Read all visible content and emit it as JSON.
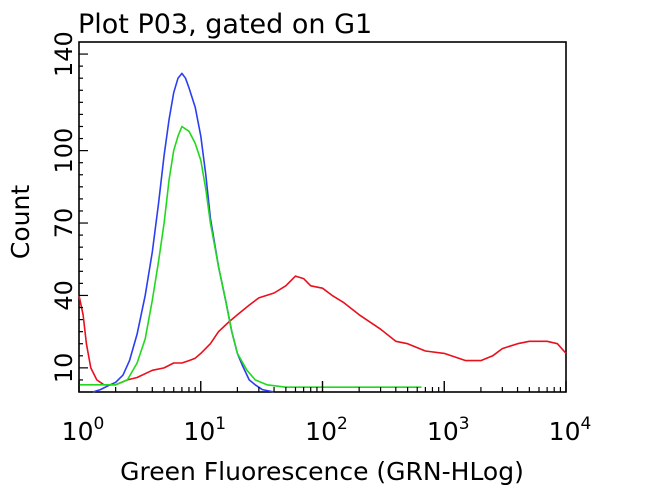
{
  "chart_data": {
    "type": "line",
    "title": "Plot P03, gated on G1",
    "xlabel": "Green Fluorescence (GRN-HLog)",
    "ylabel": "Count",
    "x_scale": "log",
    "xlim": [
      1,
      10000
    ],
    "ylim": [
      0,
      145
    ],
    "x_ticks": [
      {
        "value": 1,
        "base": "10",
        "exp": "0"
      },
      {
        "value": 10,
        "base": "10",
        "exp": "1"
      },
      {
        "value": 100,
        "base": "10",
        "exp": "2"
      },
      {
        "value": 1000,
        "base": "10",
        "exp": "3"
      },
      {
        "value": 10000,
        "base": "10",
        "exp": "4"
      }
    ],
    "y_ticks": [
      {
        "value": 10,
        "label": "10"
      },
      {
        "value": 40,
        "label": "40"
      },
      {
        "value": 70,
        "label": "70"
      },
      {
        "value": 100,
        "label": "100"
      },
      {
        "value": 140,
        "label": "140"
      }
    ],
    "grid": false,
    "legend": "none",
    "series": [
      {
        "color": "#e8101c",
        "points": [
          [
            1.0,
            40
          ],
          [
            1.08,
            32
          ],
          [
            1.15,
            20
          ],
          [
            1.25,
            10
          ],
          [
            1.4,
            5
          ],
          [
            1.6,
            3
          ],
          [
            2.0,
            3
          ],
          [
            2.5,
            5
          ],
          [
            3.0,
            6
          ],
          [
            4.0,
            9
          ],
          [
            5.0,
            10
          ],
          [
            6.0,
            12
          ],
          [
            7.0,
            12
          ],
          [
            8.0,
            13
          ],
          [
            9.0,
            14
          ],
          [
            10.0,
            16
          ],
          [
            12.0,
            20
          ],
          [
            14.0,
            25
          ],
          [
            17.0,
            29
          ],
          [
            20.0,
            32
          ],
          [
            25.0,
            36
          ],
          [
            30.0,
            39
          ],
          [
            40.0,
            41
          ],
          [
            50.0,
            44
          ],
          [
            60.0,
            48
          ],
          [
            70.0,
            47
          ],
          [
            80.0,
            44
          ],
          [
            100.0,
            43
          ],
          [
            120.0,
            40
          ],
          [
            150.0,
            37
          ],
          [
            200.0,
            32
          ],
          [
            300.0,
            26
          ],
          [
            400.0,
            21
          ],
          [
            500.0,
            20
          ],
          [
            700.0,
            17
          ],
          [
            1000.0,
            16
          ],
          [
            1500.0,
            13
          ],
          [
            2000.0,
            13
          ],
          [
            2500.0,
            15
          ],
          [
            3000.0,
            18
          ],
          [
            4000.0,
            20
          ],
          [
            5000.0,
            21
          ],
          [
            7000.0,
            21
          ],
          [
            8500.0,
            20
          ],
          [
            10000.0,
            16
          ]
        ]
      },
      {
        "color": "#2b3ff0",
        "points": [
          [
            1.3,
            0
          ],
          [
            1.5,
            1
          ],
          [
            1.8,
            3
          ],
          [
            2.0,
            4
          ],
          [
            2.3,
            7
          ],
          [
            2.6,
            13
          ],
          [
            3.0,
            24
          ],
          [
            3.5,
            40
          ],
          [
            4.0,
            58
          ],
          [
            4.5,
            78
          ],
          [
            5.0,
            98
          ],
          [
            5.5,
            113
          ],
          [
            6.0,
            124
          ],
          [
            6.5,
            130
          ],
          [
            7.0,
            132
          ],
          [
            7.5,
            130
          ],
          [
            8.0,
            126
          ],
          [
            9.0,
            118
          ],
          [
            10.0,
            106
          ],
          [
            11.0,
            90
          ],
          [
            12.0,
            72
          ],
          [
            14.0,
            52
          ],
          [
            16.0,
            38
          ],
          [
            18.0,
            25
          ],
          [
            20.0,
            16
          ],
          [
            22.0,
            11
          ],
          [
            25.0,
            5
          ],
          [
            28.0,
            3
          ],
          [
            32.0,
            1
          ],
          [
            40.0,
            0
          ]
        ]
      },
      {
        "color": "#22d81e",
        "points": [
          [
            1.0,
            3
          ],
          [
            1.5,
            3
          ],
          [
            2.0,
            3
          ],
          [
            2.5,
            5
          ],
          [
            3.0,
            12
          ],
          [
            3.5,
            22
          ],
          [
            4.0,
            38
          ],
          [
            4.5,
            54
          ],
          [
            5.0,
            70
          ],
          [
            5.5,
            88
          ],
          [
            6.0,
            100
          ],
          [
            6.5,
            106
          ],
          [
            7.0,
            110
          ],
          [
            8.0,
            108
          ],
          [
            9.0,
            103
          ],
          [
            10.0,
            96
          ],
          [
            11.0,
            84
          ],
          [
            12.0,
            70
          ],
          [
            14.0,
            52
          ],
          [
            16.0,
            38
          ],
          [
            18.0,
            25
          ],
          [
            20.0,
            16
          ],
          [
            24.0,
            9
          ],
          [
            28.0,
            5
          ],
          [
            35.0,
            3
          ],
          [
            50.0,
            2
          ],
          [
            100.0,
            2
          ],
          [
            300.0,
            2
          ],
          [
            650.0,
            2
          ]
        ]
      }
    ]
  }
}
